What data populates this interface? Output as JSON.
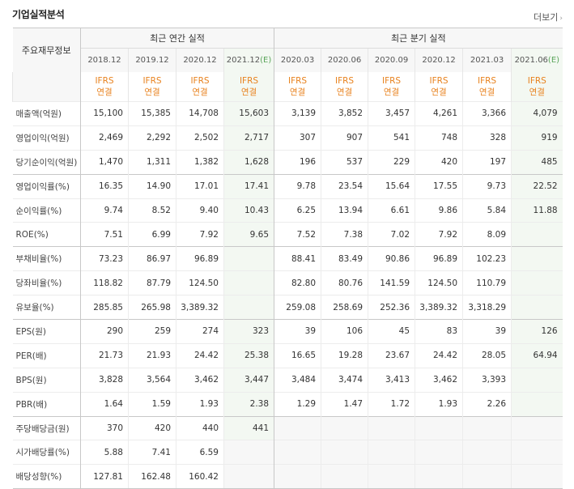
{
  "title": "기업실적분석",
  "more_label": "더보기",
  "header": {
    "label_col": "주요재무정보",
    "annual_group": "최근 연간 실적",
    "quarter_group": "최근 분기 실적",
    "periods": [
      "2018.12",
      "2019.12",
      "2020.12",
      "2021.12(E)",
      "2020.03",
      "2020.06",
      "2020.09",
      "2020.12",
      "2021.03",
      "2021.06(E)"
    ],
    "period_parts": [
      {
        "base": "2018.12",
        "est": ""
      },
      {
        "base": "2019.12",
        "est": ""
      },
      {
        "base": "2020.12",
        "est": ""
      },
      {
        "base": "2021.12",
        "est": "(E)"
      },
      {
        "base": "2020.03",
        "est": ""
      },
      {
        "base": "2020.06",
        "est": ""
      },
      {
        "base": "2020.09",
        "est": ""
      },
      {
        "base": "2020.12",
        "est": ""
      },
      {
        "base": "2021.03",
        "est": ""
      },
      {
        "base": "2021.06",
        "est": "(E)"
      }
    ],
    "standard_line1": "IFRS",
    "standard_line2": "연결"
  },
  "rows": [
    {
      "label": "매출액(억원)",
      "values": [
        "15,100",
        "15,385",
        "14,708",
        "15,603",
        "3,139",
        "3,852",
        "3,457",
        "4,261",
        "3,366",
        "4,079"
      ]
    },
    {
      "label": "영업이익(억원)",
      "values": [
        "2,469",
        "2,292",
        "2,502",
        "2,717",
        "307",
        "907",
        "541",
        "748",
        "328",
        "919"
      ]
    },
    {
      "label": "당기순이익(억원)",
      "values": [
        "1,470",
        "1,311",
        "1,382",
        "1,628",
        "196",
        "537",
        "229",
        "420",
        "197",
        "485"
      ]
    },
    {
      "label": "영업이익률(%)",
      "values": [
        "16.35",
        "14.90",
        "17.01",
        "17.41",
        "9.78",
        "23.54",
        "15.64",
        "17.55",
        "9.73",
        "22.52"
      ]
    },
    {
      "label": "순이익률(%)",
      "values": [
        "9.74",
        "8.52",
        "9.40",
        "10.43",
        "6.25",
        "13.94",
        "6.61",
        "9.86",
        "5.84",
        "11.88"
      ]
    },
    {
      "label": "ROE(%)",
      "values": [
        "7.51",
        "6.99",
        "7.92",
        "9.65",
        "7.52",
        "7.38",
        "7.02",
        "7.92",
        "8.09",
        ""
      ]
    },
    {
      "label": "부채비율(%)",
      "values": [
        "73.23",
        "86.97",
        "96.89",
        "",
        "88.41",
        "83.49",
        "90.86",
        "96.89",
        "102.23",
        ""
      ]
    },
    {
      "label": "당좌비율(%)",
      "values": [
        "118.82",
        "87.79",
        "124.50",
        "",
        "82.80",
        "80.76",
        "141.59",
        "124.50",
        "110.79",
        ""
      ]
    },
    {
      "label": "유보율(%)",
      "values": [
        "285.85",
        "265.98",
        "3,389.32",
        "",
        "259.08",
        "258.69",
        "252.36",
        "3,389.32",
        "3,318.29",
        ""
      ]
    },
    {
      "label": "EPS(원)",
      "values": [
        "290",
        "259",
        "274",
        "323",
        "39",
        "106",
        "45",
        "83",
        "39",
        "126"
      ]
    },
    {
      "label": "PER(배)",
      "values": [
        "21.73",
        "21.93",
        "24.42",
        "25.38",
        "16.65",
        "19.28",
        "23.67",
        "24.42",
        "28.05",
        "64.94"
      ]
    },
    {
      "label": "BPS(원)",
      "values": [
        "3,828",
        "3,564",
        "3,462",
        "3,447",
        "3,484",
        "3,474",
        "3,413",
        "3,462",
        "3,393",
        ""
      ]
    },
    {
      "label": "PBR(배)",
      "values": [
        "1.64",
        "1.59",
        "1.93",
        "2.38",
        "1.29",
        "1.47",
        "1.72",
        "1.93",
        "2.26",
        ""
      ]
    },
    {
      "label": "주당배당금(원)",
      "values": [
        "370",
        "420",
        "440",
        "441",
        "",
        "",
        "",
        "",
        "",
        ""
      ]
    },
    {
      "label": "시가배당률(%)",
      "values": [
        "5.88",
        "7.41",
        "6.59",
        "",
        "",
        "",
        "",
        "",
        "",
        ""
      ]
    },
    {
      "label": "배당성향(%)",
      "values": [
        "127.81",
        "162.48",
        "160.42",
        "",
        "",
        "",
        "",
        "",
        "",
        ""
      ]
    }
  ],
  "group_starts": [
    3,
    6,
    9,
    13
  ]
}
